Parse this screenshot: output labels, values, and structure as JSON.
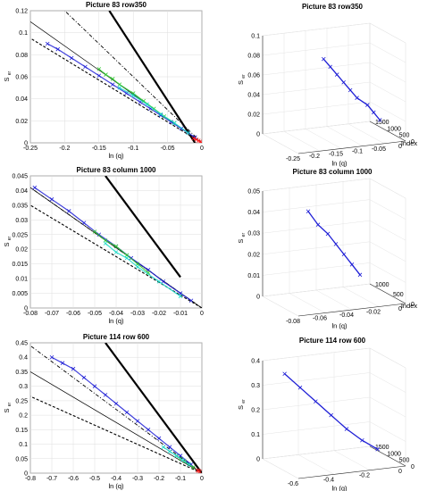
{
  "chart_data": [
    {
      "type": "line",
      "title": "Picture 83 row350",
      "xlabel": "ln (q)",
      "ylabel_main": "S",
      "ylabel_sub": "er",
      "xlim": [
        -0.25,
        0
      ],
      "ylim": [
        0,
        0.12
      ],
      "xticks": [
        "-0.25",
        "-0.2",
        "-0.15",
        "-0.1",
        "-0.05",
        "0"
      ],
      "yticks": [
        "0",
        "0.02",
        "0.04",
        "0.06",
        "0.08",
        "0.1",
        "0.12"
      ],
      "grid": true,
      "lines": [
        {
          "style": "thick-solid",
          "color": "#000000",
          "x": [
            -0.01,
            -0.135
          ],
          "y": [
            0,
            0.12
          ]
        },
        {
          "style": "thin-solid",
          "color": "#000000",
          "x": [
            0,
            -0.25
          ],
          "y": [
            0,
            0.11
          ]
        },
        {
          "style": "dash-dot",
          "color": "#000000",
          "x": [
            0,
            -0.2
          ],
          "y": [
            0,
            0.12
          ]
        },
        {
          "style": "dashed",
          "color": "#000000",
          "x": [
            0,
            -0.25
          ],
          "y": [
            0,
            0.095
          ]
        }
      ],
      "scatter": [
        {
          "color": "#1f1fd6",
          "marker": "x",
          "x": [
            -0.225,
            -0.21,
            -0.19,
            -0.17,
            -0.15,
            -0.13,
            -0.11,
            -0.09,
            -0.075,
            -0.06,
            -0.045,
            -0.03,
            -0.02,
            -0.01
          ],
          "y": [
            0.09,
            0.085,
            0.077,
            0.069,
            0.061,
            0.053,
            0.045,
            0.037,
            0.031,
            0.025,
            0.019,
            0.013,
            0.009,
            0.005
          ]
        },
        {
          "color": "#2ec82e",
          "marker": "x",
          "x": [
            -0.15,
            -0.14,
            -0.13,
            -0.12,
            -0.1,
            -0.085,
            -0.07,
            -0.055,
            -0.04
          ],
          "y": [
            0.067,
            0.062,
            0.058,
            0.053,
            0.045,
            0.038,
            0.031,
            0.024,
            0.018
          ]
        },
        {
          "color": "#19d9c8",
          "marker": "x",
          "x": [
            -0.12,
            -0.1,
            -0.08,
            -0.06,
            -0.04,
            -0.02
          ],
          "y": [
            0.05,
            0.043,
            0.035,
            0.026,
            0.018,
            0.009
          ]
        },
        {
          "color": "#ff1a1a",
          "marker": "x",
          "x": [
            -0.012,
            -0.008,
            -0.005,
            -0.003,
            -0.001
          ],
          "y": [
            0.004,
            0.003,
            0.002,
            0.001,
            0.0005
          ]
        }
      ]
    },
    {
      "type": "line",
      "title": "Picture 83 row350",
      "xlabel": "ln (q)",
      "zlabel": "Index",
      "ylabel_main": "S",
      "ylabel_sub": "er",
      "view": "3d",
      "xticks": [
        "-0.25",
        "-0.2",
        "-0.15",
        "-0.1",
        "-0.05",
        "0"
      ],
      "zticks": [
        "0",
        "500",
        "1000",
        "1500"
      ],
      "yticks": [
        "0",
        "0.02",
        "0.04",
        "0.06",
        "0.08",
        "0.1"
      ],
      "path": {
        "color": "#1f1fd6",
        "x": [
          -0.18,
          -0.16,
          -0.14,
          -0.12,
          -0.1,
          -0.08,
          -0.05,
          -0.03,
          -0.01
        ],
        "index": [
          200,
          280,
          360,
          440,
          520,
          600,
          700,
          800,
          900
        ],
        "s": [
          0.09,
          0.08,
          0.07,
          0.06,
          0.05,
          0.04,
          0.03,
          0.02,
          0.01
        ]
      }
    },
    {
      "type": "line",
      "title": "Picture 83 column 1000",
      "xlabel": "ln (q)",
      "ylabel_main": "S",
      "ylabel_sub": "er",
      "xlim": [
        -0.08,
        0
      ],
      "ylim": [
        0,
        0.045
      ],
      "xticks": [
        "-0.08",
        "-0.07",
        "-0.06",
        "-0.05",
        "-0.04",
        "-0.03",
        "-0.02",
        "-0.01",
        "0"
      ],
      "yticks": [
        "0",
        "0.005",
        "0.01",
        "0.015",
        "0.02",
        "0.025",
        "0.03",
        "0.035",
        "0.04",
        "0.045"
      ],
      "grid": true,
      "lines": [
        {
          "style": "thick-solid",
          "color": "#000000",
          "x": [
            -0.01,
            -0.045
          ],
          "y": [
            0.0105,
            0.045
          ]
        },
        {
          "style": "thin-solid",
          "color": "#000000",
          "x": [
            0,
            -0.08
          ],
          "y": [
            0,
            0.041
          ]
        },
        {
          "style": "dash-dot",
          "color": "#000000",
          "x": [
            0,
            -0.08
          ],
          "y": [
            0,
            0.041
          ]
        },
        {
          "style": "dashed",
          "color": "#000000",
          "x": [
            0,
            -0.08
          ],
          "y": [
            0,
            0.035
          ]
        }
      ],
      "scatter": [
        {
          "color": "#1f1fd6",
          "marker": "x",
          "x": [
            -0.078,
            -0.07,
            -0.062,
            -0.055,
            -0.048,
            -0.04,
            -0.033,
            -0.025,
            -0.018,
            -0.01,
            -0.005
          ],
          "y": [
            0.041,
            0.037,
            0.033,
            0.029,
            0.025,
            0.021,
            0.017,
            0.013,
            0.009,
            0.005,
            0.0025
          ]
        },
        {
          "color": "#2ec82e",
          "marker": "x",
          "x": [
            -0.05,
            -0.045,
            -0.04,
            -0.035,
            -0.03,
            -0.025
          ],
          "y": [
            0.026,
            0.023,
            0.021,
            0.018,
            0.015,
            0.012
          ]
        },
        {
          "color": "#19d9c8",
          "marker": "x",
          "x": [
            -0.045,
            -0.04,
            -0.035,
            -0.03,
            -0.02,
            -0.01
          ],
          "y": [
            0.022,
            0.019,
            0.017,
            0.014,
            0.009,
            0.004
          ]
        }
      ]
    },
    {
      "type": "line",
      "title": "Picture 83 column 1000",
      "xlabel": "ln (q)",
      "zlabel": "Index",
      "ylabel_main": "S",
      "ylabel_sub": "er",
      "view": "3d",
      "xticks": [
        "-0.08",
        "-0.06",
        "-0.04",
        "-0.02",
        "0"
      ],
      "zticks": [
        "0",
        "500",
        "1000"
      ],
      "yticks": [
        "0",
        "0.01",
        "0.02",
        "0.03",
        "0.04",
        "0.05"
      ],
      "path": {
        "color": "#1f1fd6",
        "x": [
          -0.07,
          -0.06,
          -0.05,
          -0.04,
          -0.03,
          -0.02,
          -0.01
        ],
        "index": [
          100,
          200,
          300,
          450,
          600,
          750,
          900
        ],
        "s": [
          0.048,
          0.04,
          0.034,
          0.027,
          0.02,
          0.013,
          0.006
        ]
      }
    },
    {
      "type": "line",
      "title": "Picture 114 row 600",
      "xlabel": "ln (q)",
      "ylabel_main": "S",
      "ylabel_sub": "er",
      "xlim": [
        -0.8,
        0
      ],
      "ylim": [
        0,
        0.45
      ],
      "xticks": [
        "-0.8",
        "-0.7",
        "-0.6",
        "-0.5",
        "-0.4",
        "-0.3",
        "-0.2",
        "-0.1",
        "0"
      ],
      "yticks": [
        "0",
        "0.05",
        "0.1",
        "0.15",
        "0.2",
        "0.25",
        "0.3",
        "0.35",
        "0.4",
        "0.45"
      ],
      "grid": true,
      "lines": [
        {
          "style": "thick-solid",
          "color": "#000000",
          "x": [
            0,
            -0.45
          ],
          "y": [
            0,
            0.45
          ]
        },
        {
          "style": "thin-solid",
          "color": "#000000",
          "x": [
            0,
            -0.8
          ],
          "y": [
            0,
            0.35
          ]
        },
        {
          "style": "dash-dot",
          "color": "#000000",
          "x": [
            0,
            -0.8
          ],
          "y": [
            0,
            0.44
          ]
        },
        {
          "style": "dashed",
          "color": "#000000",
          "x": [
            0,
            -0.8
          ],
          "y": [
            0,
            0.265
          ]
        }
      ],
      "scatter": [
        {
          "color": "#1f1fd6",
          "marker": "x",
          "x": [
            -0.7,
            -0.65,
            -0.6,
            -0.55,
            -0.5,
            -0.45,
            -0.4,
            -0.35,
            -0.3,
            -0.25,
            -0.2,
            -0.15,
            -0.1,
            -0.05
          ],
          "y": [
            0.4,
            0.38,
            0.36,
            0.33,
            0.3,
            0.27,
            0.24,
            0.21,
            0.18,
            0.15,
            0.12,
            0.09,
            0.06,
            0.03
          ]
        },
        {
          "color": "#2ec82e",
          "marker": "x",
          "x": [
            -0.12,
            -0.1,
            -0.08,
            -0.06,
            -0.04
          ],
          "y": [
            0.06,
            0.05,
            0.04,
            0.03,
            0.02
          ]
        },
        {
          "color": "#19d9c8",
          "marker": "x",
          "x": [
            -0.18,
            -0.15,
            -0.12,
            -0.09,
            -0.06
          ],
          "y": [
            0.09,
            0.075,
            0.06,
            0.045,
            0.03
          ]
        },
        {
          "color": "#ff1a1a",
          "marker": "x",
          "x": [
            -0.02,
            -0.015,
            -0.01
          ],
          "y": [
            0.01,
            0.008,
            0.005
          ]
        }
      ]
    },
    {
      "type": "line",
      "title": "Picture 114 row 600",
      "xlabel": "ln (q)",
      "ylabel_main": "S",
      "ylabel_sub": "er",
      "view": "3d",
      "xticks": [
        "-0.6",
        "-0.4",
        "-0.2",
        "0"
      ],
      "zticks": [
        "0",
        "500",
        "1000",
        "1500"
      ],
      "yticks": [
        "0",
        "0.1",
        "0.2",
        "0.3",
        "0.4"
      ],
      "path": {
        "color": "#1f1fd6",
        "x": [
          -0.65,
          -0.55,
          -0.45,
          -0.35,
          -0.25,
          -0.15,
          -0.05
        ],
        "index": [
          200,
          300,
          400,
          500,
          600,
          700,
          800
        ],
        "s": [
          0.42,
          0.35,
          0.28,
          0.21,
          0.14,
          0.08,
          0.03
        ]
      }
    }
  ]
}
